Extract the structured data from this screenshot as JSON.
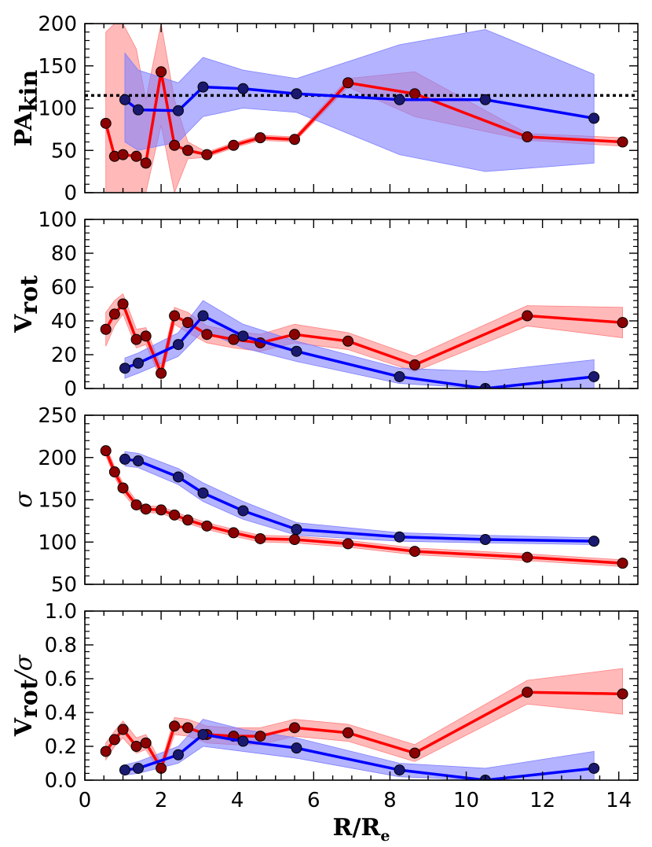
{
  "chart_data": [
    {
      "type": "line",
      "panel": "pa",
      "ylabel_main": "PA",
      "ylabel_sub": "kin",
      "ylim": [
        0,
        200
      ],
      "yticks": [
        0,
        50,
        100,
        150,
        200
      ],
      "xlim": [
        0,
        14.5
      ],
      "reference_line": 115,
      "series": [
        {
          "name": "red",
          "x": [
            0.55,
            0.78,
            1.0,
            1.35,
            1.6,
            2.0,
            2.35,
            2.7,
            3.2,
            3.9,
            4.6,
            5.5,
            6.9,
            8.65,
            11.6,
            14.1
          ],
          "y": [
            82,
            43,
            45,
            43,
            35,
            143,
            56,
            50,
            45,
            56,
            65,
            63,
            130,
            117,
            66,
            60
          ],
          "lo": [
            0,
            0,
            0,
            0,
            0,
            80,
            0,
            40,
            42,
            53,
            62,
            60,
            125,
            90,
            62,
            55
          ],
          "hi": [
            190,
            200,
            200,
            170,
            110,
            200,
            110,
            60,
            48,
            59,
            68,
            66,
            135,
            143,
            70,
            65
          ]
        },
        {
          "name": "blue",
          "x": [
            1.05,
            1.4,
            2.45,
            3.1,
            4.15,
            5.55,
            8.25,
            10.5,
            13.35
          ],
          "y": [
            110,
            98,
            97,
            125,
            123,
            117,
            110,
            110,
            88
          ],
          "lo": [
            60,
            50,
            60,
            90,
            100,
            95,
            45,
            25,
            35
          ],
          "hi": [
            165,
            145,
            130,
            160,
            145,
            135,
            175,
            193,
            140
          ]
        }
      ]
    },
    {
      "type": "line",
      "panel": "vrot",
      "ylabel_main": "V",
      "ylabel_sub": "rot",
      "ylim": [
        0,
        100
      ],
      "yticks": [
        0,
        20,
        40,
        60,
        80,
        100
      ],
      "xlim": [
        0,
        14.5
      ],
      "series": [
        {
          "name": "red",
          "x": [
            0.55,
            0.78,
            1.0,
            1.35,
            1.6,
            2.0,
            2.35,
            2.7,
            3.2,
            3.9,
            4.6,
            5.5,
            6.9,
            8.65,
            11.6,
            14.1
          ],
          "y": [
            35,
            44,
            50,
            29,
            31,
            9,
            43,
            39,
            32,
            29,
            27,
            32,
            28,
            14,
            43,
            39
          ],
          "lo": [
            25,
            37,
            44,
            24,
            26,
            5,
            38,
            33,
            27,
            24,
            22,
            27,
            23,
            10,
            37,
            30
          ],
          "hi": [
            45,
            52,
            56,
            35,
            36,
            13,
            48,
            45,
            37,
            34,
            32,
            38,
            33,
            19,
            49,
            48
          ]
        },
        {
          "name": "blue",
          "x": [
            1.05,
            1.4,
            2.45,
            3.1,
            4.15,
            5.55,
            8.25,
            10.5,
            13.35
          ],
          "y": [
            12,
            15,
            26,
            43,
            31,
            22,
            7,
            0,
            7
          ],
          "lo": [
            6,
            9,
            19,
            34,
            24,
            16,
            3,
            0,
            0
          ],
          "hi": [
            18,
            21,
            33,
            52,
            38,
            28,
            12,
            10,
            17
          ]
        }
      ]
    },
    {
      "type": "line",
      "panel": "sigma",
      "ylabel_main": "σ",
      "ylim": [
        50,
        250
      ],
      "yticks": [
        50,
        100,
        150,
        200,
        250
      ],
      "xlim": [
        0,
        14.5
      ],
      "series": [
        {
          "name": "red",
          "x": [
            0.55,
            0.78,
            1.0,
            1.35,
            1.6,
            2.0,
            2.35,
            2.7,
            3.2,
            3.9,
            4.6,
            5.5,
            6.9,
            8.65,
            11.6,
            14.1
          ],
          "y": [
            208,
            183,
            164,
            144,
            139,
            138,
            132,
            126,
            119,
            111,
            104,
            103,
            98,
            89,
            82,
            75
          ],
          "lo": [
            202,
            177,
            158,
            139,
            135,
            134,
            128,
            122,
            115,
            107,
            100,
            99,
            94,
            85,
            78,
            71
          ],
          "hi": [
            214,
            189,
            170,
            149,
            143,
            142,
            136,
            130,
            123,
            115,
            108,
            107,
            102,
            93,
            86,
            79
          ]
        },
        {
          "name": "blue",
          "x": [
            1.05,
            1.4,
            2.45,
            3.1,
            4.15,
            5.55,
            8.25,
            10.5,
            13.35
          ],
          "y": [
            198,
            196,
            177,
            158,
            137,
            115,
            106,
            103,
            101
          ],
          "lo": [
            190,
            188,
            168,
            148,
            127,
            108,
            101,
            99,
            97
          ],
          "hi": [
            207,
            205,
            187,
            170,
            148,
            123,
            111,
            108,
            105
          ]
        }
      ]
    },
    {
      "type": "line",
      "panel": "vsigma",
      "ylabel_main": "V",
      "ylabel_sub": "rot",
      "ylabel_tail": "/σ",
      "ylim": [
        0,
        1.0
      ],
      "yticks": [
        0.0,
        0.2,
        0.4,
        0.6,
        0.8,
        1.0
      ],
      "xlim": [
        0,
        14.5
      ],
      "xticks": [
        0,
        2,
        4,
        6,
        8,
        10,
        12,
        14
      ],
      "xlabel_main": "R/R",
      "xlabel_sub": "e",
      "series": [
        {
          "name": "red",
          "x": [
            0.55,
            0.78,
            1.0,
            1.35,
            1.6,
            2.0,
            2.35,
            2.7,
            3.2,
            3.9,
            4.6,
            5.5,
            6.9,
            8.65,
            11.6,
            14.1
          ],
          "y": [
            0.17,
            0.24,
            0.3,
            0.2,
            0.22,
            0.07,
            0.32,
            0.31,
            0.27,
            0.26,
            0.26,
            0.31,
            0.28,
            0.16,
            0.52,
            0.51
          ],
          "lo": [
            0.12,
            0.2,
            0.25,
            0.16,
            0.18,
            0.04,
            0.27,
            0.26,
            0.22,
            0.21,
            0.21,
            0.26,
            0.23,
            0.11,
            0.45,
            0.39
          ],
          "hi": [
            0.22,
            0.29,
            0.35,
            0.25,
            0.27,
            0.1,
            0.37,
            0.36,
            0.32,
            0.31,
            0.31,
            0.36,
            0.33,
            0.21,
            0.59,
            0.66
          ]
        },
        {
          "name": "blue",
          "x": [
            1.05,
            1.4,
            2.45,
            3.1,
            4.15,
            5.55,
            8.25,
            10.5,
            13.35
          ],
          "y": [
            0.06,
            0.07,
            0.15,
            0.27,
            0.23,
            0.19,
            0.06,
            0.0,
            0.07
          ],
          "lo": [
            0.03,
            0.04,
            0.1,
            0.2,
            0.17,
            0.13,
            0.02,
            0.0,
            0.0
          ],
          "hi": [
            0.09,
            0.11,
            0.2,
            0.36,
            0.3,
            0.25,
            0.1,
            0.07,
            0.17
          ]
        }
      ]
    }
  ],
  "colors": {
    "red_line": "#ff0000",
    "red_marker": "#8b0000",
    "red_band": "#ff8080",
    "blue_line": "#0000ff",
    "blue_marker": "#191970",
    "blue_band": "#8080ff"
  }
}
